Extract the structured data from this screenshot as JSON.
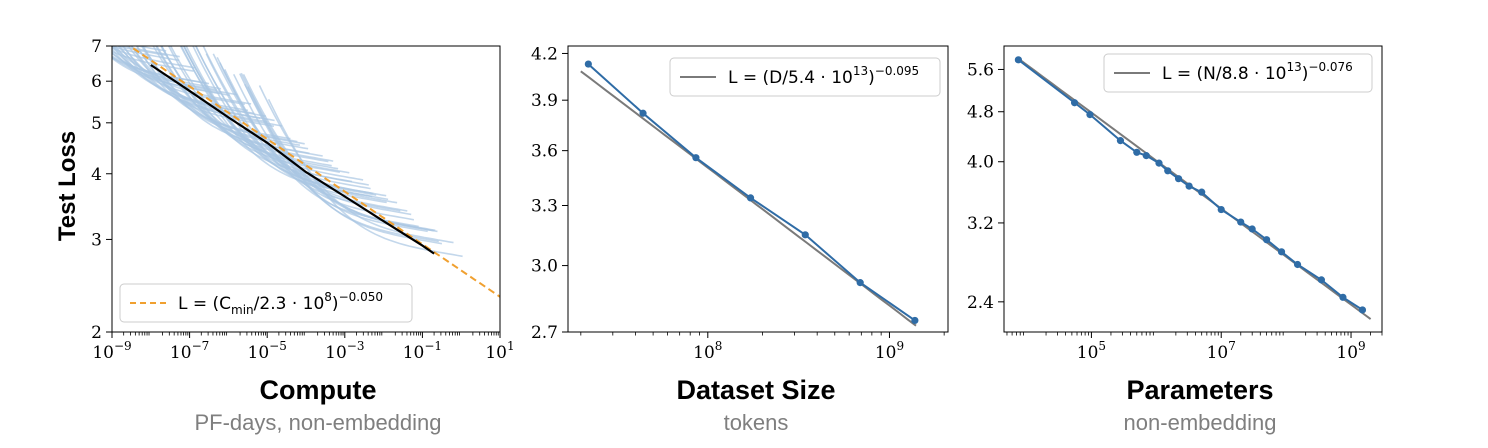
{
  "colors": {
    "curves": "#a9c6e2",
    "frontier": "#000000",
    "fit_orange": "#f0a030",
    "data_blue": "#2f6ca6",
    "fit_gray": "#7a7a7a",
    "subtitle": "#7f7f7f"
  },
  "ylabel": "Test Loss",
  "chart_data": [
    {
      "type": "line",
      "title": "Compute",
      "subtitle": "PF-days, non-embedding",
      "x_scale": "log",
      "y_scale": "log",
      "xlim": [
        1e-09,
        10
      ],
      "ylim": [
        2,
        7
      ],
      "x_ticks": [
        {
          "v": 1e-09,
          "b": "10",
          "e": "−9"
        },
        {
          "v": 1e-07,
          "b": "10",
          "e": "−7"
        },
        {
          "v": 1e-05,
          "b": "10",
          "e": "−5"
        },
        {
          "v": 0.001,
          "b": "10",
          "e": "−3"
        },
        {
          "v": 0.1,
          "b": "10",
          "e": "−1"
        },
        {
          "v": 10,
          "b": "10",
          "e": "1"
        }
      ],
      "y_ticks": [
        {
          "v": 2,
          "t": "2"
        },
        {
          "v": 3,
          "t": "3"
        },
        {
          "v": 4,
          "t": "4"
        },
        {
          "v": 5,
          "t": "5"
        },
        {
          "v": 6,
          "t": "6"
        },
        {
          "v": 7,
          "t": "7"
        }
      ],
      "legend": {
        "position": "lower-left",
        "style": "dashed-orange",
        "label": "L = (C_min/2.3 · 10^8)^−0.050"
      },
      "fit": {
        "coef": 230000000.0,
        "exp": -0.05,
        "x_range": [
          1.2e-09,
          10
        ]
      },
      "frontier": [
        [
          1e-08,
          6.44
        ],
        [
          1e-07,
          5.75
        ],
        [
          1e-06,
          5.12
        ],
        [
          1e-05,
          4.58
        ],
        [
          0.0001,
          4.03
        ],
        [
          0.001,
          3.62
        ],
        [
          0.01,
          3.25
        ],
        [
          0.1,
          2.92
        ],
        [
          0.2,
          2.82
        ]
      ],
      "series_note_count": 60
    },
    {
      "type": "line",
      "title": "Dataset Size",
      "subtitle": "tokens",
      "x_scale": "log",
      "y_scale": "log",
      "xlim": [
        17000000.0,
        2100000000.0
      ],
      "ylim": [
        2.7,
        4.25
      ],
      "x_ticks": [
        {
          "v": 100000000.0,
          "b": "10",
          "e": "8"
        },
        {
          "v": 1000000000.0,
          "b": "10",
          "e": "9"
        }
      ],
      "y_ticks": [
        {
          "v": 2.7,
          "t": "2.7"
        },
        {
          "v": 3.0,
          "t": "3.0"
        },
        {
          "v": 3.3,
          "t": "3.3"
        },
        {
          "v": 3.6,
          "t": "3.6"
        },
        {
          "v": 3.9,
          "t": "3.9"
        },
        {
          "v": 4.2,
          "t": "4.2"
        }
      ],
      "legend": {
        "position": "upper-right",
        "style": "solid-gray",
        "label": "L = (D/5.4 · 10^13)^−0.095"
      },
      "fit": {
        "coef": 54000000000000.0,
        "exp": -0.095,
        "x_range": [
          20000000.0,
          1400000000.0
        ]
      },
      "points": [
        [
          22000000.0,
          4.13
        ],
        [
          44000000.0,
          3.82
        ],
        [
          86000000.0,
          3.56
        ],
        [
          172000000.0,
          3.34
        ],
        [
          344000000.0,
          3.15
        ],
        [
          690000000.0,
          2.92
        ],
        [
          1380000000.0,
          2.75
        ]
      ]
    },
    {
      "type": "line",
      "title": "Parameters",
      "subtitle": "non-embedding",
      "x_scale": "log",
      "y_scale": "log",
      "xlim": [
        4500.0,
        3000000000.0
      ],
      "ylim": [
        2.15,
        6.1
      ],
      "x_ticks": [
        {
          "v": 100000.0,
          "b": "10",
          "e": "5"
        },
        {
          "v": 10000000.0,
          "b": "10",
          "e": "7"
        },
        {
          "v": 1000000000.0,
          "b": "10",
          "e": "9"
        }
      ],
      "y_ticks": [
        {
          "v": 2.4,
          "t": "2.4"
        },
        {
          "v": 3.2,
          "t": "3.2"
        },
        {
          "v": 4.0,
          "t": "4.0"
        },
        {
          "v": 4.8,
          "t": "4.8"
        },
        {
          "v": 5.6,
          "t": "5.6"
        }
      ],
      "legend": {
        "position": "upper-right",
        "style": "solid-gray",
        "label": "L = (N/8.8 · 10^13)^−0.076"
      },
      "fit": {
        "coef": 88000000000000.0,
        "exp": -0.076,
        "x_range": [
          7000.0,
          2000000000.0
        ]
      },
      "points": [
        [
          7500.0,
          5.8
        ],
        [
          55000.0,
          4.96
        ],
        [
          95000.0,
          4.75
        ],
        [
          280000.0,
          4.32
        ],
        [
          500000.0,
          4.14
        ],
        [
          700000.0,
          4.09
        ],
        [
          1100000.0,
          3.98
        ],
        [
          1500000.0,
          3.87
        ],
        [
          2200000.0,
          3.76
        ],
        [
          3200000.0,
          3.66
        ],
        [
          5000000.0,
          3.58
        ],
        [
          10000000.0,
          3.36
        ],
        [
          20000000.0,
          3.21
        ],
        [
          30000000.0,
          3.13
        ],
        [
          50000000.0,
          3.01
        ],
        [
          85000000.0,
          2.88
        ],
        [
          150000000.0,
          2.75
        ],
        [
          350000000.0,
          2.6
        ],
        [
          750000000.0,
          2.44
        ],
        [
          1500000000.0,
          2.33
        ]
      ]
    }
  ]
}
